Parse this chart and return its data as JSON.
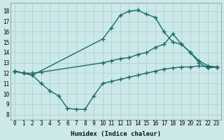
{
  "background_color": "#cce8e8",
  "grid_color": "#aad4d4",
  "line_color": "#1a6b6b",
  "line_width": 1.0,
  "marker": "+",
  "marker_size": 4,
  "marker_edge_width": 1.0,
  "xlabel": "Humidex (Indice chaleur)",
  "xlabel_fontsize": 6.5,
  "xlim": [
    -0.5,
    23.5
  ],
  "ylim": [
    7.5,
    18.8
  ],
  "xticks": [
    0,
    1,
    2,
    3,
    4,
    5,
    6,
    7,
    8,
    9,
    10,
    11,
    12,
    13,
    14,
    15,
    16,
    17,
    18,
    19,
    20,
    21,
    22,
    23
  ],
  "yticks": [
    8,
    9,
    10,
    11,
    12,
    13,
    14,
    15,
    16,
    17,
    18
  ],
  "line1_x": [
    0,
    1,
    2,
    10,
    11,
    12,
    13,
    14,
    15,
    16,
    17,
    18,
    19,
    20,
    21,
    22,
    23
  ],
  "line1_y": [
    12.2,
    12.0,
    11.8,
    15.3,
    16.4,
    17.6,
    18.0,
    18.1,
    17.7,
    17.4,
    16.0,
    15.0,
    14.8,
    14.0,
    13.2,
    12.7,
    12.6
  ],
  "line2_x": [
    0,
    1,
    2,
    3,
    10,
    11,
    12,
    13,
    14,
    15,
    16,
    17,
    18,
    19,
    20,
    21,
    22,
    23
  ],
  "line2_y": [
    12.2,
    12.0,
    12.0,
    12.1,
    13.0,
    13.2,
    13.4,
    13.5,
    13.8,
    14.0,
    14.5,
    14.8,
    15.8,
    14.8,
    14.0,
    13.0,
    12.5,
    12.6
  ],
  "line3_x": [
    0,
    1,
    2,
    3,
    4,
    5,
    6,
    7,
    8,
    9,
    10,
    11,
    12,
    13,
    14,
    15,
    16,
    17,
    18,
    19,
    20,
    21,
    22,
    23
  ],
  "line3_y": [
    12.2,
    12.0,
    11.8,
    11.0,
    10.3,
    9.8,
    8.6,
    8.5,
    8.5,
    9.8,
    11.0,
    11.2,
    11.4,
    11.6,
    11.8,
    12.0,
    12.2,
    12.4,
    12.5,
    12.6,
    12.6,
    12.7,
    12.6,
    12.6
  ]
}
